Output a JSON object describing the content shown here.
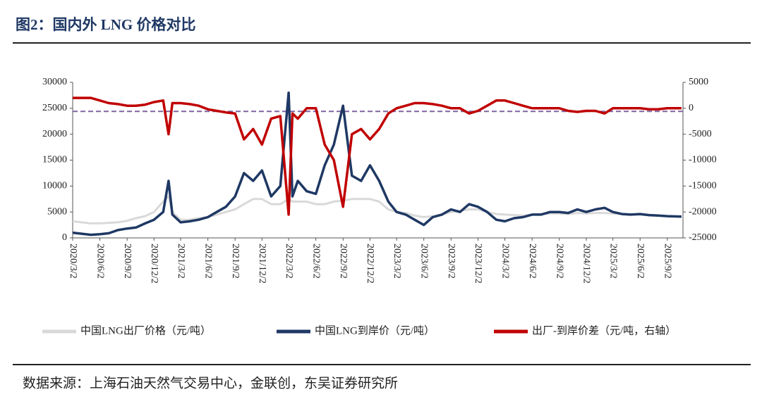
{
  "chart_data": {
    "type": "line",
    "title": "图2：国内外 LNG 价格对比",
    "source": "数据来源：上海石油天然气交易中心，金联创，东吴证券研究所",
    "x": [
      "2020/3/2",
      "2020/4/2",
      "2020/5/2",
      "2020/6/2",
      "2020/7/2",
      "2020/8/2",
      "2020/9/2",
      "2020/10/2",
      "2020/11/2",
      "2020/12/2",
      "2021/1/2",
      "2021/1/20",
      "2021/2/2",
      "2021/3/2",
      "2021/4/2",
      "2021/5/2",
      "2021/6/2",
      "2021/7/2",
      "2021/8/2",
      "2021/9/2",
      "2021/10/2",
      "2021/11/2",
      "2021/12/2",
      "2022/1/2",
      "2022/2/2",
      "2022/3/2",
      "2022/3/15",
      "2022/4/2",
      "2022/5/2",
      "2022/6/2",
      "2022/7/2",
      "2022/8/2",
      "2022/9/2",
      "2022/10/2",
      "2022/11/2",
      "2022/12/2",
      "2023/1/2",
      "2023/2/2",
      "2023/3/2",
      "2023/4/2",
      "2023/5/2",
      "2023/6/2",
      "2023/7/2",
      "2023/8/2",
      "2023/9/2",
      "2023/10/2",
      "2023/11/2",
      "2023/12/2",
      "2024/1/2",
      "2024/2/2",
      "2024/3/2",
      "2024/4/2",
      "2024/5/2",
      "2024/6/2",
      "2024/7/2",
      "2024/8/2",
      "2024/9/2",
      "2024/10/2",
      "2024/11/2",
      "2024/12/2",
      "2025/1/2",
      "2025/2/2",
      "2025/3/2",
      "2025/4/2",
      "2025/5/2",
      "2025/6/2",
      "2025/7/2",
      "2025/8/2",
      "2025/9/2",
      "2025/10/20"
    ],
    "xlim": [
      "2020/3/2",
      "2025/10/25"
    ],
    "xticks": [
      "2020/3/2",
      "2020/6/2",
      "2020/9/2",
      "2020/12/2",
      "2021/3/2",
      "2021/6/2",
      "2021/9/2",
      "2021/12/2",
      "2022/3/2",
      "2022/6/2",
      "2022/9/2",
      "2022/12/2",
      "2023/3/2",
      "2023/6/2",
      "2023/9/2",
      "2023/12/2",
      "2024/3/2",
      "2024/6/2",
      "2024/9/2",
      "2024/12/2",
      "2025/3/2",
      "2025/6/2",
      "2025/9/2"
    ],
    "ylim": [
      0,
      30000
    ],
    "yticks": [
      0,
      5000,
      10000,
      15000,
      20000,
      25000,
      30000
    ],
    "y2lim": [
      -25000,
      5000
    ],
    "y2ticks": [
      -25000,
      -20000,
      -15000,
      -10000,
      -5000,
      0,
      5000
    ],
    "reference_line": {
      "value": -600,
      "axis": "y2",
      "color": "#8064a2"
    },
    "series": [
      {
        "name": "中国LNG出厂价格（元/吨）",
        "color": "#d9d9d9",
        "values": [
          3200,
          3000,
          2800,
          2800,
          2900,
          3000,
          3300,
          3800,
          4200,
          5000,
          7000,
          8000,
          5000,
          3500,
          3500,
          3800,
          4000,
          4500,
          5000,
          5500,
          6500,
          7500,
          7500,
          6500,
          6500,
          7500,
          7000,
          7000,
          7000,
          6500,
          6500,
          7000,
          7200,
          7500,
          7500,
          7500,
          7000,
          5500,
          5000,
          4800,
          4300,
          4000,
          4200,
          4500,
          5000,
          5200,
          5500,
          5500,
          5000,
          4600,
          4500,
          4400,
          4300,
          4500,
          4600,
          4700,
          4700,
          4600,
          4800,
          4700,
          4800,
          4800,
          4700,
          4600,
          4500,
          4500,
          4400,
          4300,
          4200,
          4100
        ]
      },
      {
        "name": "中国LNG到岸价（元/吨）",
        "color": "#1f3864",
        "values": [
          1000,
          800,
          600,
          700,
          900,
          1500,
          1800,
          2000,
          2800,
          3500,
          5000,
          11000,
          4500,
          3000,
          3200,
          3500,
          4000,
          5000,
          6000,
          8000,
          12500,
          11000,
          13000,
          8000,
          10000,
          28000,
          8000,
          11000,
          9000,
          8500,
          14000,
          18000,
          25500,
          12000,
          11000,
          14000,
          11000,
          7000,
          5000,
          4500,
          3500,
          2500,
          4000,
          4500,
          5500,
          5000,
          6500,
          6000,
          5000,
          3500,
          3200,
          3800,
          4000,
          4500,
          4500,
          5000,
          5000,
          4800,
          5500,
          5000,
          5500,
          5800,
          5000,
          4600,
          4500,
          4600,
          4400,
          4300,
          4200,
          4100
        ]
      },
      {
        "name": "出厂-到岸价差（元/吨，右轴）",
        "color": "#c00000",
        "axis": "y2",
        "values": [
          2000,
          2000,
          2000,
          1500,
          1000,
          800,
          500,
          500,
          700,
          1200,
          1500,
          -5000,
          1000,
          1000,
          800,
          500,
          -200,
          -500,
          -800,
          -1000,
          -6000,
          -4000,
          -7000,
          -2000,
          -1500,
          -20500,
          -1000,
          -2000,
          0,
          0,
          -7000,
          -10000,
          -19000,
          -5000,
          -4000,
          -6000,
          -4000,
          -1000,
          0,
          500,
          1000,
          1000,
          800,
          500,
          0,
          0,
          -1000,
          -500,
          500,
          1500,
          1500,
          1000,
          500,
          0,
          0,
          0,
          0,
          -500,
          -700,
          -500,
          -500,
          -1000,
          0,
          0,
          0,
          0,
          -200,
          -200,
          0,
          0
        ]
      }
    ]
  }
}
